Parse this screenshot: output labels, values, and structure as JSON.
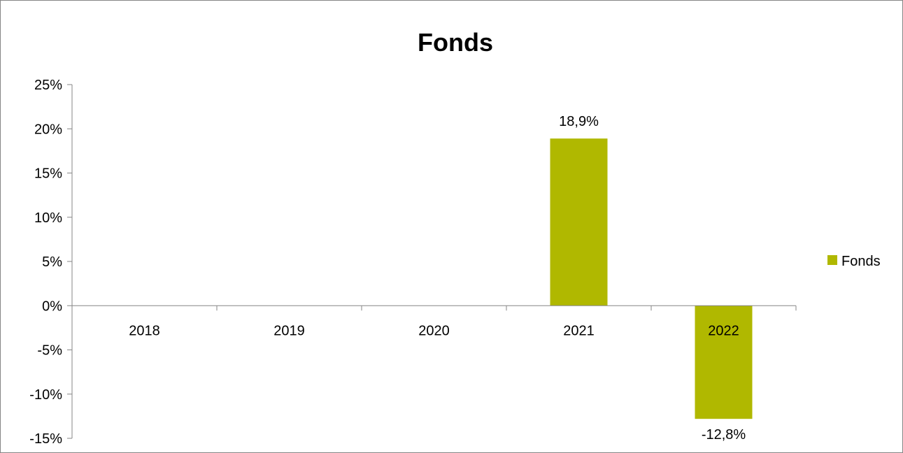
{
  "chart_data": {
    "type": "bar",
    "title": "Fonds",
    "categories": [
      "2018",
      "2019",
      "2020",
      "2021",
      "2022"
    ],
    "series": [
      {
        "name": "Fonds",
        "values": [
          null,
          null,
          null,
          18.9,
          -12.8
        ],
        "data_labels": [
          "",
          "",
          "",
          "18,9%",
          "-12,8%"
        ],
        "color": "#b0b800"
      }
    ],
    "yticks": [
      25,
      20,
      15,
      10,
      5,
      0,
      -5,
      -10,
      -15
    ],
    "ytick_labels": [
      "25%",
      "20%",
      "15%",
      "10%",
      "5%",
      "0%",
      "-5%",
      "-10%",
      "-15%"
    ],
    "ylim": [
      -15,
      25
    ],
    "grid": false,
    "legend_position": "right"
  }
}
